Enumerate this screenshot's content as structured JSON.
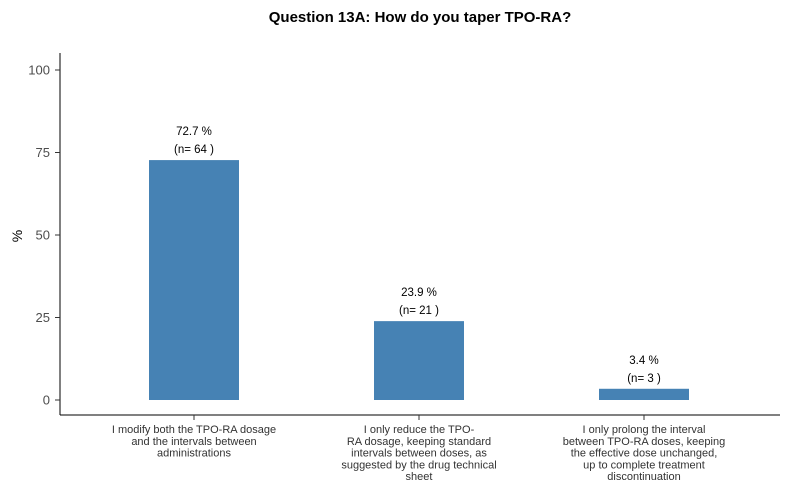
{
  "chart_data": {
    "type": "bar",
    "title": "Question 13A: How do you taper TPO-RA?",
    "ylabel": "%",
    "xlabel": "",
    "ylim": [
      0,
      100
    ],
    "yticks": [
      0,
      25,
      50,
      75,
      100
    ],
    "grid": false,
    "bar_color": "#4682b4",
    "categories": [
      "I modify both the TPO-RA dosage and the intervals between administrations",
      "I only reduce the TPO-RA dosage, keeping standard intervals between doses, as suggested by the drug technical sheet",
      "I only prolong the interval between TPO-RA doses, keeping the effective dose unchanged, up to complete treatment discontinuation"
    ],
    "category_lines": [
      [
        "I modify both the TPO-RA dosage",
        "and the intervals between",
        "administrations"
      ],
      [
        "I only reduce the TPO-",
        "RA dosage, keeping standard",
        "intervals between doses, as",
        "suggested by the drug technical",
        "sheet"
      ],
      [
        "I only prolong the interval",
        "between TPO-RA doses, keeping",
        "the effective dose unchanged,",
        "up to complete treatment",
        "discontinuation"
      ]
    ],
    "values": [
      72.7,
      23.9,
      3.4
    ],
    "value_labels": [
      "72.7 %",
      "23.9 %",
      "3.4 %"
    ],
    "n_labels": [
      "(n= 64 )",
      "(n= 21 )",
      "(n= 3 )"
    ]
  }
}
